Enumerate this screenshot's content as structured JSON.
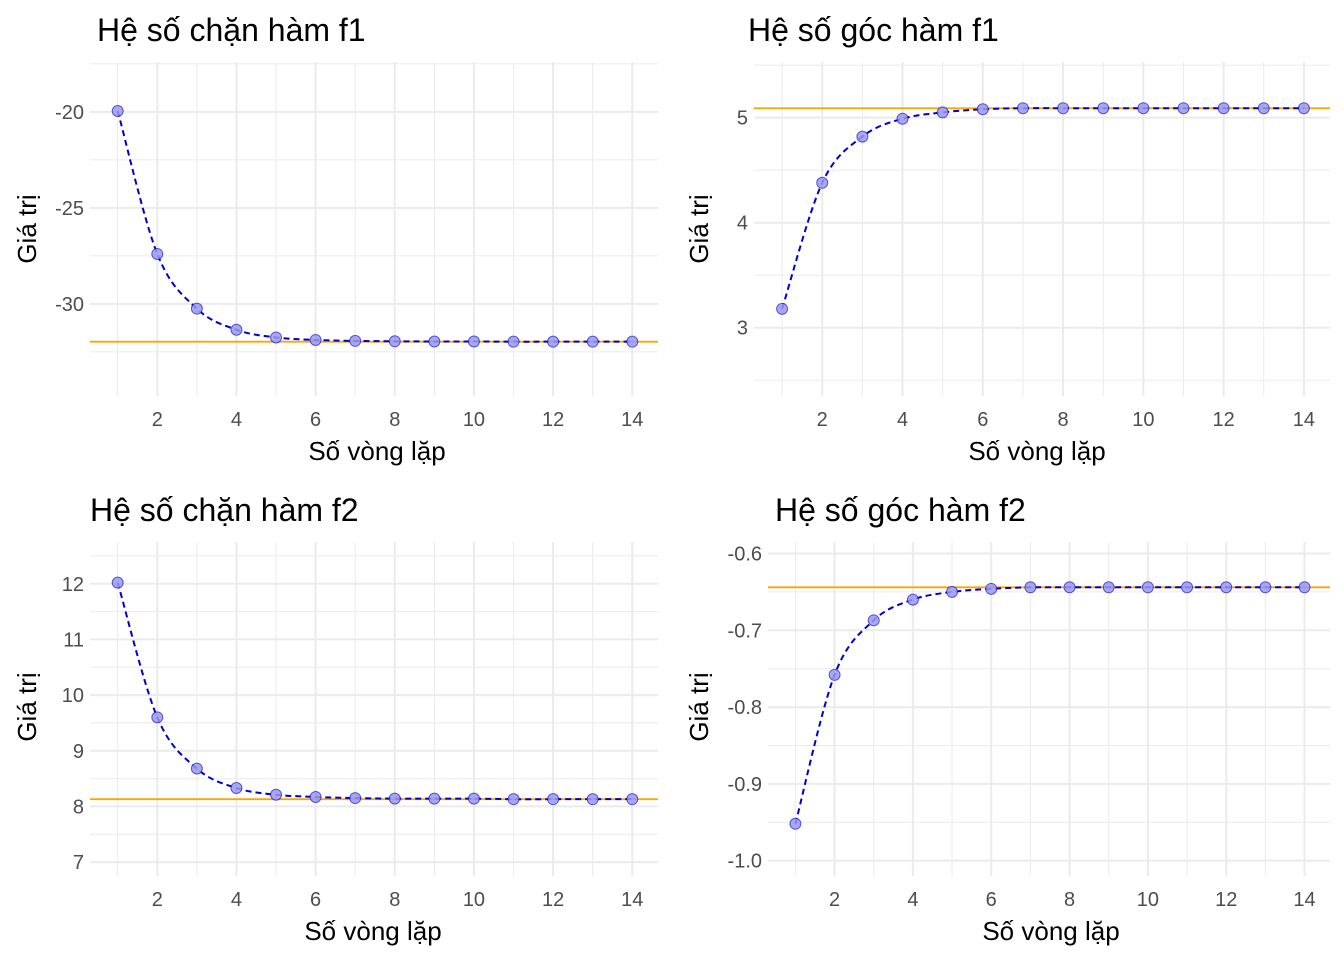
{
  "chart_data": [
    {
      "type": "line",
      "title": "Hệ số chặn hàm f1",
      "xlabel": "Số vòng lặp",
      "ylabel": "Giá trị",
      "x": [
        1,
        2,
        3,
        4,
        5,
        6,
        7,
        8,
        9,
        10,
        11,
        12,
        13,
        14
      ],
      "y": [
        -19.95,
        -27.4,
        -30.25,
        -31.35,
        -31.75,
        -31.88,
        -31.93,
        -31.95,
        -31.96,
        -31.96,
        -31.97,
        -31.97,
        -31.97,
        -31.97
      ],
      "reference_line": -31.97,
      "xlim": [
        0.3,
        14.65
      ],
      "ylim": [
        -34.8,
        -17.4
      ],
      "x_ticks": [
        2,
        4,
        6,
        8,
        10,
        12,
        14
      ],
      "y_ticks": [
        -20,
        -25,
        -30
      ],
      "x_tick_labels": [
        "2",
        "4",
        "6",
        "8",
        "10",
        "12",
        "14"
      ],
      "y_tick_labels": [
        "-20",
        "-25",
        "-30"
      ],
      "grid": true,
      "colors": {
        "line": "#0000cc",
        "point_fill": "#9999ee",
        "point_stroke": "#0000cc",
        "reference": "#ffa500",
        "grid": "#ebebeb"
      }
    },
    {
      "type": "line",
      "title": "Hệ số góc hàm f1",
      "xlabel": "Số vòng lặp",
      "ylabel": "Giá trị",
      "x": [
        1,
        2,
        3,
        4,
        5,
        6,
        7,
        8,
        9,
        10,
        11,
        12,
        13,
        14
      ],
      "y": [
        3.18,
        4.38,
        4.82,
        4.99,
        5.05,
        5.08,
        5.09,
        5.09,
        5.09,
        5.09,
        5.09,
        5.09,
        5.09,
        5.09
      ],
      "reference_line": 5.09,
      "xlim": [
        0.3,
        14.65
      ],
      "ylim": [
        2.35,
        5.53
      ],
      "x_ticks": [
        2,
        4,
        6,
        8,
        10,
        12,
        14
      ],
      "y_ticks": [
        3,
        4,
        5
      ],
      "x_tick_labels": [
        "2",
        "4",
        "6",
        "8",
        "10",
        "12",
        "14"
      ],
      "y_tick_labels": [
        "3",
        "4",
        "5"
      ],
      "grid": true,
      "colors": {
        "line": "#0000cc",
        "point_fill": "#9999ee",
        "point_stroke": "#0000cc",
        "reference": "#ffa500",
        "grid": "#ebebeb"
      }
    },
    {
      "type": "line",
      "title": "Hệ số chặn hàm f2",
      "xlabel": "Số vòng lặp",
      "ylabel": "Giá trị",
      "x": [
        1,
        2,
        3,
        4,
        5,
        6,
        7,
        8,
        9,
        10,
        11,
        12,
        13,
        14
      ],
      "y": [
        12.02,
        9.6,
        8.68,
        8.33,
        8.21,
        8.17,
        8.15,
        8.14,
        8.14,
        8.14,
        8.13,
        8.13,
        8.13,
        8.13
      ],
      "reference_line": 8.13,
      "xlim": [
        0.3,
        14.65
      ],
      "ylim": [
        6.75,
        12.75
      ],
      "x_ticks": [
        2,
        4,
        6,
        8,
        10,
        12,
        14
      ],
      "y_ticks": [
        7,
        8,
        9,
        10,
        11,
        12
      ],
      "x_tick_labels": [
        "2",
        "4",
        "6",
        "8",
        "10",
        "12",
        "14"
      ],
      "y_tick_labels": [
        "7",
        "8",
        "9",
        "10",
        "11",
        "12"
      ],
      "grid": true,
      "colors": {
        "line": "#0000cc",
        "point_fill": "#9999ee",
        "point_stroke": "#0000cc",
        "reference": "#ffa500",
        "grid": "#ebebeb"
      }
    },
    {
      "type": "line",
      "title": "Hệ số góc hàm f2",
      "xlabel": "Số vòng lặp",
      "ylabel": "Giá trị",
      "x": [
        1,
        2,
        3,
        4,
        5,
        6,
        7,
        8,
        9,
        10,
        11,
        12,
        13,
        14
      ],
      "y": [
        -0.952,
        -0.758,
        -0.687,
        -0.66,
        -0.65,
        -0.646,
        -0.644,
        -0.644,
        -0.644,
        -0.644,
        -0.644,
        -0.644,
        -0.644,
        -0.644
      ],
      "reference_line": -0.644,
      "xlim": [
        0.3,
        14.65
      ],
      "ylim": [
        -1.02,
        -0.585
      ],
      "x_ticks": [
        2,
        4,
        6,
        8,
        10,
        12,
        14
      ],
      "y_ticks": [
        -1.0,
        -0.9,
        -0.8,
        -0.7,
        -0.6
      ],
      "x_tick_labels": [
        "2",
        "4",
        "6",
        "8",
        "10",
        "12",
        "14"
      ],
      "y_tick_labels": [
        "-1.0",
        "-0.9",
        "-0.8",
        "-0.7",
        "-0.6"
      ],
      "grid": true,
      "colors": {
        "line": "#0000cc",
        "point_fill": "#9999ee",
        "point_stroke": "#0000cc",
        "reference": "#ffa500",
        "grid": "#ebebeb"
      }
    }
  ]
}
